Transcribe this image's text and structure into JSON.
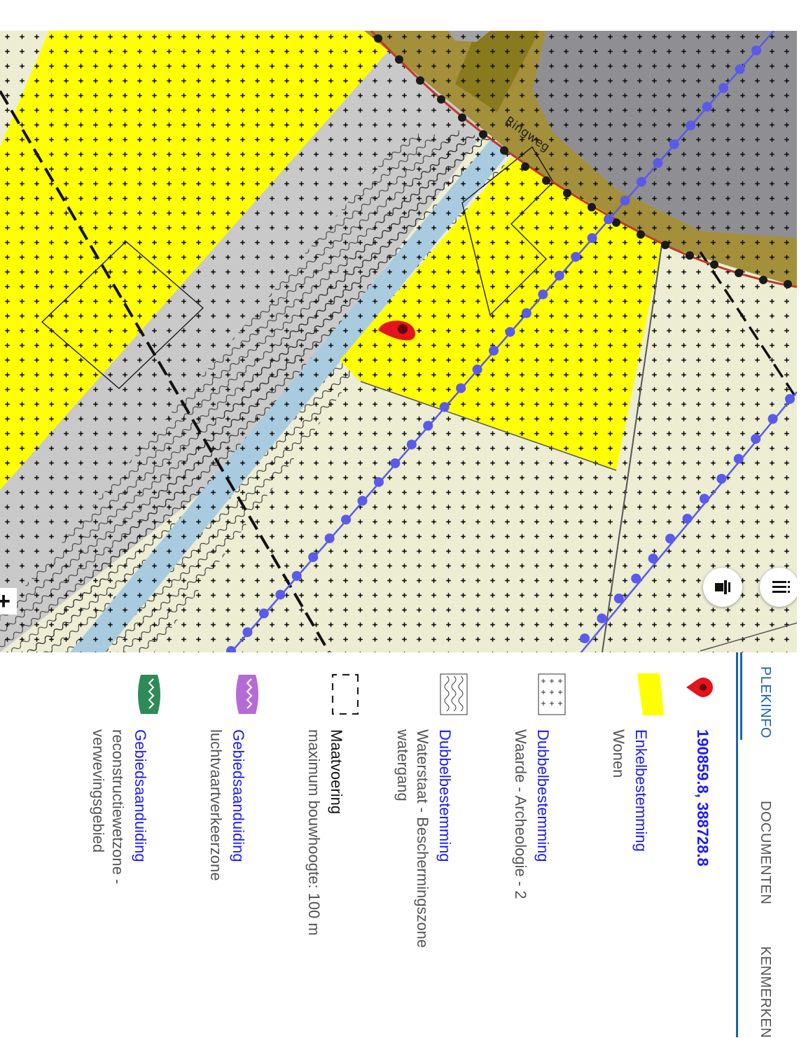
{
  "map": {
    "street_label": "Ringweg",
    "controls": {
      "zoom_in": "+",
      "layers_icon": "layers-icon",
      "menu_icon": "menu-icon"
    },
    "colors": {
      "wonen": "#ffff00",
      "background": "#ecedd3",
      "verkeer": "#c9c9c9",
      "water": "#a9cbe0",
      "road": "#a48f3b",
      "dark_road": "#8a7a1e",
      "building": "#8f8f93",
      "point_line": "#5a5aeb"
    }
  },
  "panel": {
    "tabs": [
      {
        "label": "PLEKINFO",
        "active": true
      },
      {
        "label": "DOCUMENTEN",
        "active": false
      },
      {
        "label": "KENMERKEN",
        "active": false
      }
    ],
    "location": {
      "icon": "location-pin-icon",
      "coordinates": "190859.8, 388728.8"
    },
    "items": [
      {
        "icon": "yellow-parallelogram-icon",
        "title": "Enkelbestemming",
        "lines": [
          "Wonen"
        ]
      },
      {
        "icon": "crosshatch-pattern-icon",
        "title": "Dubbelbestemming",
        "lines": [
          "Waarde - Archeologie - 2"
        ]
      },
      {
        "icon": "wave-pattern-icon",
        "title": "Dubbelbestemming",
        "lines": [
          "Waterstaat - Beschermingszone",
          "watergang"
        ]
      },
      {
        "icon": "dashed-rectangle-icon",
        "title": "Maatvoering",
        "lines": [
          "maximum bouwhoogte: 100 m"
        ]
      },
      {
        "icon": "purple-zone-icon",
        "title": "Gebiedsaanduiding",
        "lines": [
          "luchtvaartverkeerzone"
        ]
      },
      {
        "icon": "green-zone-icon",
        "title": "Gebiedsaanduiding",
        "lines": [
          "reconstructiewetzone -",
          "verwevingsgebied"
        ]
      }
    ]
  }
}
